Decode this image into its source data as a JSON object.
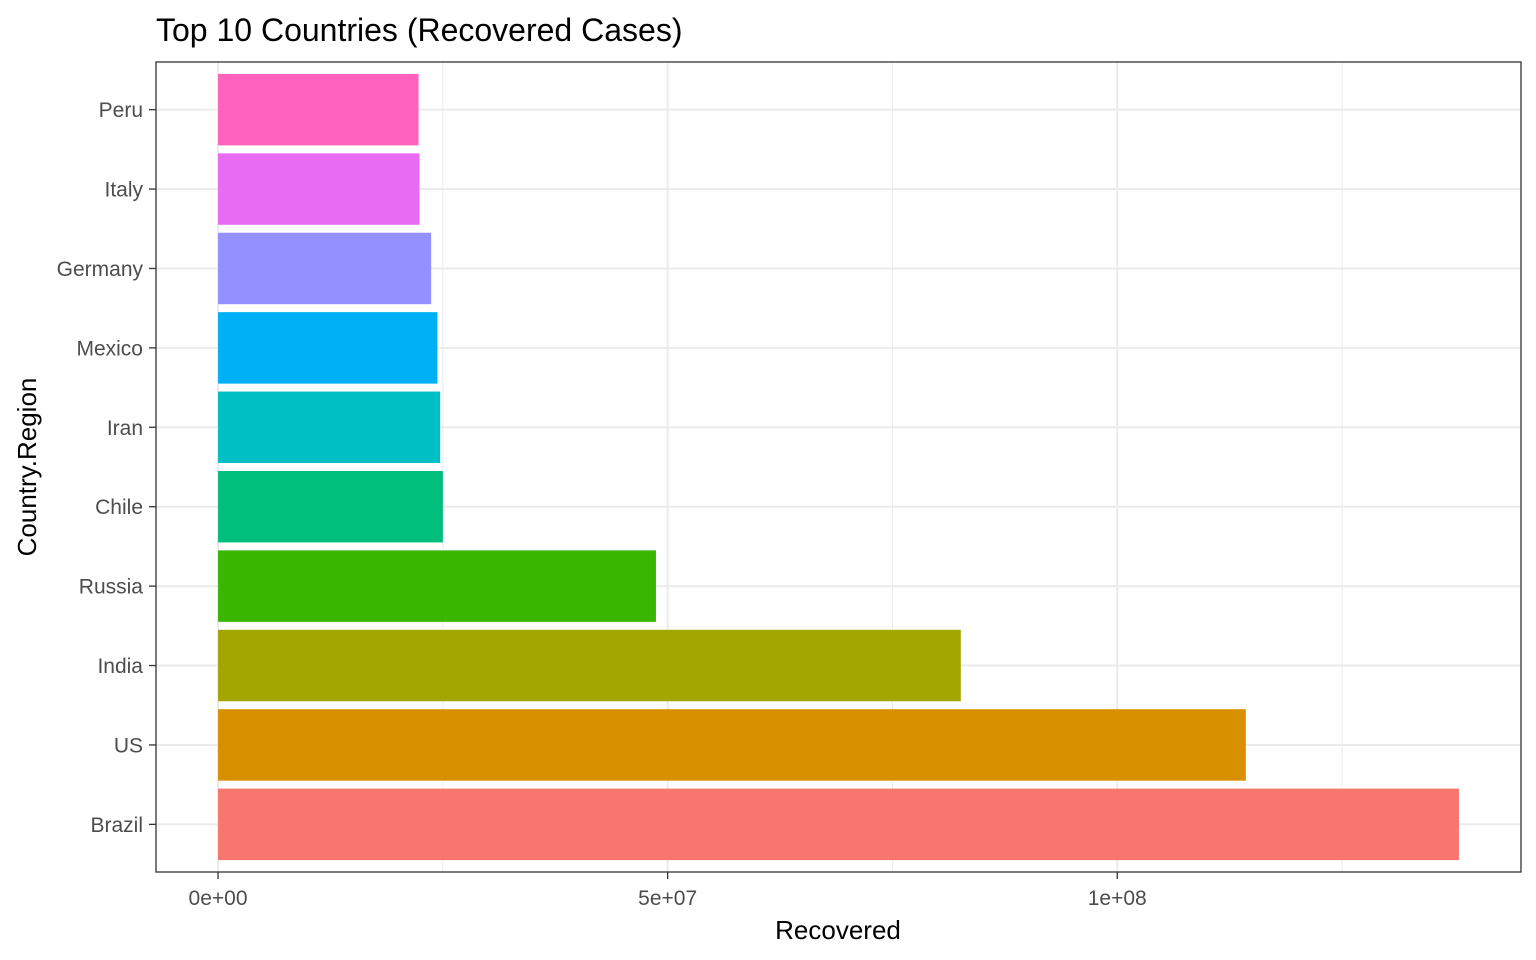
{
  "chart_data": {
    "type": "bar",
    "orientation": "horizontal",
    "title": "Top 10 Countries (Recovered Cases)",
    "xlabel": "Recovered",
    "ylabel": "Country.Region",
    "categories": [
      "Brazil",
      "US",
      "India",
      "Russia",
      "Chile",
      "Iran",
      "Mexico",
      "Germany",
      "Italy",
      "Peru"
    ],
    "values": [
      138000000,
      114300000,
      82600000,
      48700000,
      25000000,
      24700000,
      24400000,
      23700000,
      22400000,
      22300000
    ],
    "colors": [
      "#F8766D",
      "#D89000",
      "#A3A500",
      "#39B600",
      "#00BF7D",
      "#00BFC4",
      "#00B0F6",
      "#9590FF",
      "#E76BF3",
      "#FF62BC"
    ],
    "xlim": [
      -6900000,
      144900000
    ],
    "xticks": [
      0,
      50000000,
      100000000
    ],
    "xtick_labels": [
      "0e+00",
      "5e+07",
      "1e+08"
    ],
    "grid": true,
    "legend": "none"
  }
}
